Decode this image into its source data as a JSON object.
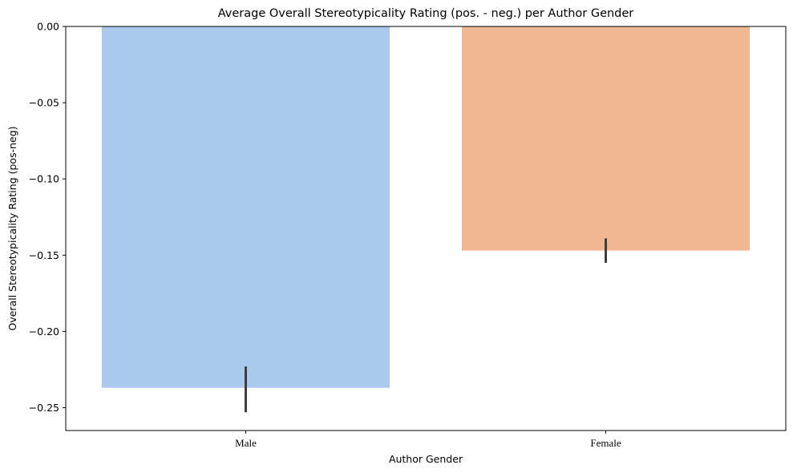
{
  "chart_data": {
    "type": "bar",
    "title": "Average Overall Stereotypicality Rating (pos. - neg.) per Author Gender",
    "xlabel": "Author Gender",
    "ylabel": "Overall Stereotypicality Rating (pos-neg)",
    "categories": [
      "Male",
      "Female"
    ],
    "values": [
      -0.237,
      -0.147
    ],
    "error_bars": [
      {
        "low": -0.253,
        "high": -0.223
      },
      {
        "low": -0.155,
        "high": -0.139
      }
    ],
    "colors": [
      "#abc9ec",
      "#f0b892"
    ],
    "error_color": "#3d3d3d",
    "ylim": [
      -0.265,
      0.0
    ],
    "yticks": [
      0.0,
      -0.05,
      -0.1,
      -0.15,
      -0.2,
      -0.25
    ],
    "ytick_labels": [
      "0.00",
      "−0.05",
      "−0.10",
      "−0.15",
      "−0.20",
      "−0.25"
    ],
    "grid": false,
    "legend": "none"
  }
}
